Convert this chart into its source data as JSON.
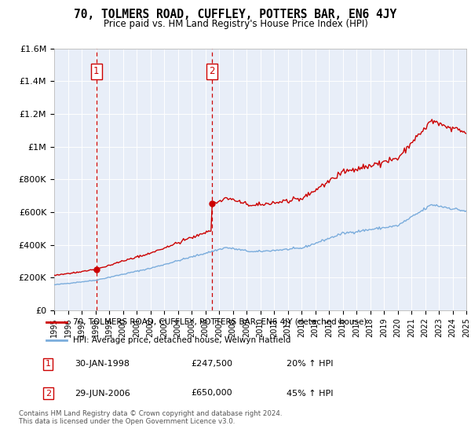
{
  "title": "70, TOLMERS ROAD, CUFFLEY, POTTERS BAR, EN6 4JY",
  "subtitle": "Price paid vs. HM Land Registry's House Price Index (HPI)",
  "legend_line1": "70, TOLMERS ROAD, CUFFLEY, POTTERS BAR, EN6 4JY (detached house)",
  "legend_line2": "HPI: Average price, detached house, Welwyn Hatfield",
  "annotation1_label": "1",
  "annotation1_date": "30-JAN-1998",
  "annotation1_price": "£247,500",
  "annotation1_hpi": "20% ↑ HPI",
  "annotation2_label": "2",
  "annotation2_date": "29-JUN-2006",
  "annotation2_price": "£650,000",
  "annotation2_hpi": "45% ↑ HPI",
  "footer": "Contains HM Land Registry data © Crown copyright and database right 2024.\nThis data is licensed under the Open Government Licence v3.0.",
  "hpi_color": "#7aacdc",
  "price_color": "#cc0000",
  "annotation_color": "#cc0000",
  "background_color": "#e8eef8",
  "ylim": [
    0,
    1600000
  ],
  "yticks": [
    0,
    200000,
    400000,
    600000,
    800000,
    1000000,
    1200000,
    1400000,
    1600000
  ],
  "ytick_labels": [
    "£0",
    "£200K",
    "£400K",
    "£600K",
    "£800K",
    "£1M",
    "£1.2M",
    "£1.4M",
    "£1.6M"
  ],
  "sale1_x": 1998.08,
  "sale1_y": 247500,
  "sale2_x": 2006.49,
  "sale2_y": 650000,
  "xmin": 1995,
  "xmax": 2025
}
